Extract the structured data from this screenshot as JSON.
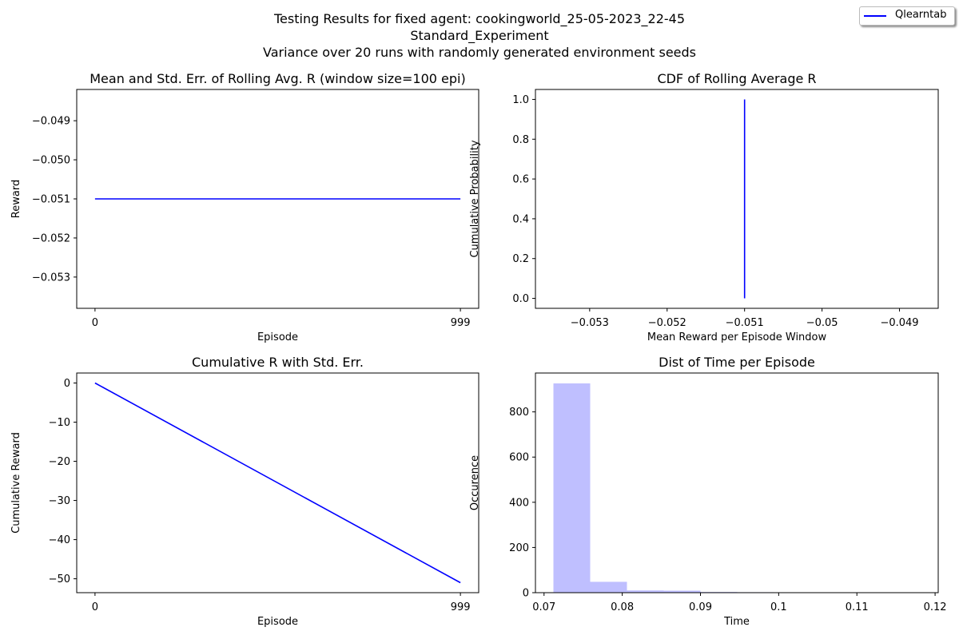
{
  "figure": {
    "title_lines": [
      "Testing Results for fixed agent: cookingworld_25-05-2023_22-45",
      "Standard_Experiment",
      "Variance over 20 runs with randomly generated environment seeds"
    ],
    "legend": {
      "label": "Qlearntab",
      "color": "#0000ff"
    }
  },
  "chart_data": [
    {
      "type": "line",
      "title": "Mean and Std. Err. of Rolling Avg. R (window size=100 epi)",
      "xlabel": "Episode",
      "ylabel": "Reward",
      "xlim": [
        -50,
        1049
      ],
      "ylim": [
        -0.0538,
        -0.0482
      ],
      "xticks": [
        0,
        999
      ],
      "yticks": [
        -0.053,
        -0.052,
        -0.051,
        -0.05,
        -0.049
      ],
      "series": [
        {
          "name": "Qlearntab",
          "color": "#0000ff",
          "x": [
            0,
            999
          ],
          "y": [
            -0.051,
            -0.051
          ]
        }
      ]
    },
    {
      "type": "line",
      "title": "CDF of Rolling Average R",
      "xlabel": "Mean Reward per Episode Window",
      "ylabel": "Cumulative Probability",
      "xlim": [
        -0.0537,
        -0.0485
      ],
      "ylim": [
        -0.05,
        1.05
      ],
      "xticks": [
        -0.053,
        -0.052,
        -0.051,
        -0.05,
        -0.049
      ],
      "yticks": [
        0.0,
        0.2,
        0.4,
        0.6,
        0.8,
        1.0
      ],
      "series": [
        {
          "name": "Qlearntab",
          "color": "#0000ff",
          "x": [
            -0.051,
            -0.051
          ],
          "y": [
            0.0,
            1.0
          ]
        }
      ]
    },
    {
      "type": "line",
      "title": "Cumulative R with Std. Err.",
      "xlabel": "Episode",
      "ylabel": "Cumulative Reward",
      "xlim": [
        -50,
        1049
      ],
      "ylim": [
        -53.55,
        2.55
      ],
      "xticks": [
        0,
        999
      ],
      "yticks": [
        0,
        -10,
        -20,
        -30,
        -40,
        -50
      ],
      "series": [
        {
          "name": "Qlearntab",
          "color": "#0000ff",
          "x": [
            0,
            999
          ],
          "y": [
            0,
            -51
          ]
        }
      ]
    },
    {
      "type": "bar",
      "title": "Dist of Time per Episode",
      "xlabel": "Time",
      "ylabel": "Occurence",
      "xlim": [
        0.0689,
        0.1204
      ],
      "ylim": [
        0,
        972
      ],
      "xticks": [
        0.07,
        0.08,
        0.09,
        0.1,
        0.11,
        0.12
      ],
      "yticks": [
        0,
        200,
        400,
        600,
        800
      ],
      "color": "#bfbfff",
      "bins": [
        {
          "start": 0.0712,
          "end": 0.0759,
          "count": 926
        },
        {
          "start": 0.0759,
          "end": 0.0806,
          "count": 48
        },
        {
          "start": 0.0806,
          "end": 0.0853,
          "count": 10
        },
        {
          "start": 0.0853,
          "end": 0.09,
          "count": 9
        },
        {
          "start": 0.09,
          "end": 0.0947,
          "count": 3
        },
        {
          "start": 0.0947,
          "end": 0.0994,
          "count": 2
        },
        {
          "start": 0.0994,
          "end": 0.1041,
          "count": 1
        },
        {
          "start": 0.1041,
          "end": 0.1088,
          "count": 1
        },
        {
          "start": 0.1088,
          "end": 0.1135,
          "count": 1
        },
        {
          "start": 0.1135,
          "end": 0.1182,
          "count": 1
        }
      ]
    }
  ]
}
